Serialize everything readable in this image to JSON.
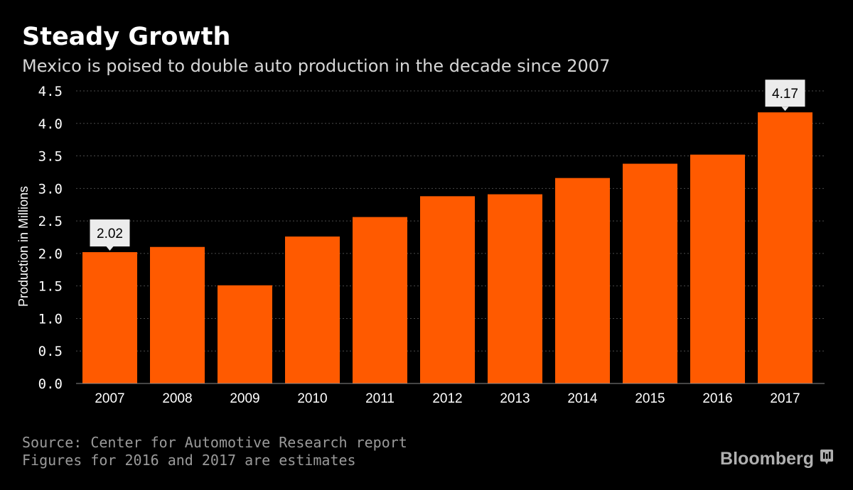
{
  "colors": {
    "background": "#000000",
    "bar": "#ff5a00",
    "grid": "#4a4a4a",
    "axis": "#8a8a8a",
    "callout_bg": "#ececec",
    "footer": "#9a9a9a",
    "brand": "#b0b0b0"
  },
  "chart_data": {
    "type": "bar",
    "title": "Steady Growth",
    "subtitle": "Mexico is poised to double auto production in the decade since 2007",
    "xlabel": "",
    "ylabel": "Production in Millions",
    "ylim": [
      0,
      4.5
    ],
    "yticks": [
      "0.0",
      "0.5",
      "1.0",
      "1.5",
      "2.0",
      "2.5",
      "3.0",
      "3.5",
      "4.0",
      "4.5"
    ],
    "grid": true,
    "categories": [
      "2007",
      "2008",
      "2009",
      "2010",
      "2011",
      "2012",
      "2013",
      "2014",
      "2015",
      "2016",
      "2017"
    ],
    "values": [
      2.02,
      2.1,
      1.51,
      2.26,
      2.56,
      2.88,
      2.91,
      3.16,
      3.38,
      3.52,
      4.17
    ],
    "annotations": [
      {
        "category": "2007",
        "value": 2.02,
        "label": "2.02"
      },
      {
        "category": "2017",
        "value": 4.17,
        "label": "4.17"
      }
    ]
  },
  "footer": {
    "source": "Source: Center for Automotive Research report",
    "note": "Figures for 2016 and 2017 are estimates"
  },
  "brand": {
    "name": "Bloomberg",
    "icon": "bloomberg-terminal-icon"
  }
}
